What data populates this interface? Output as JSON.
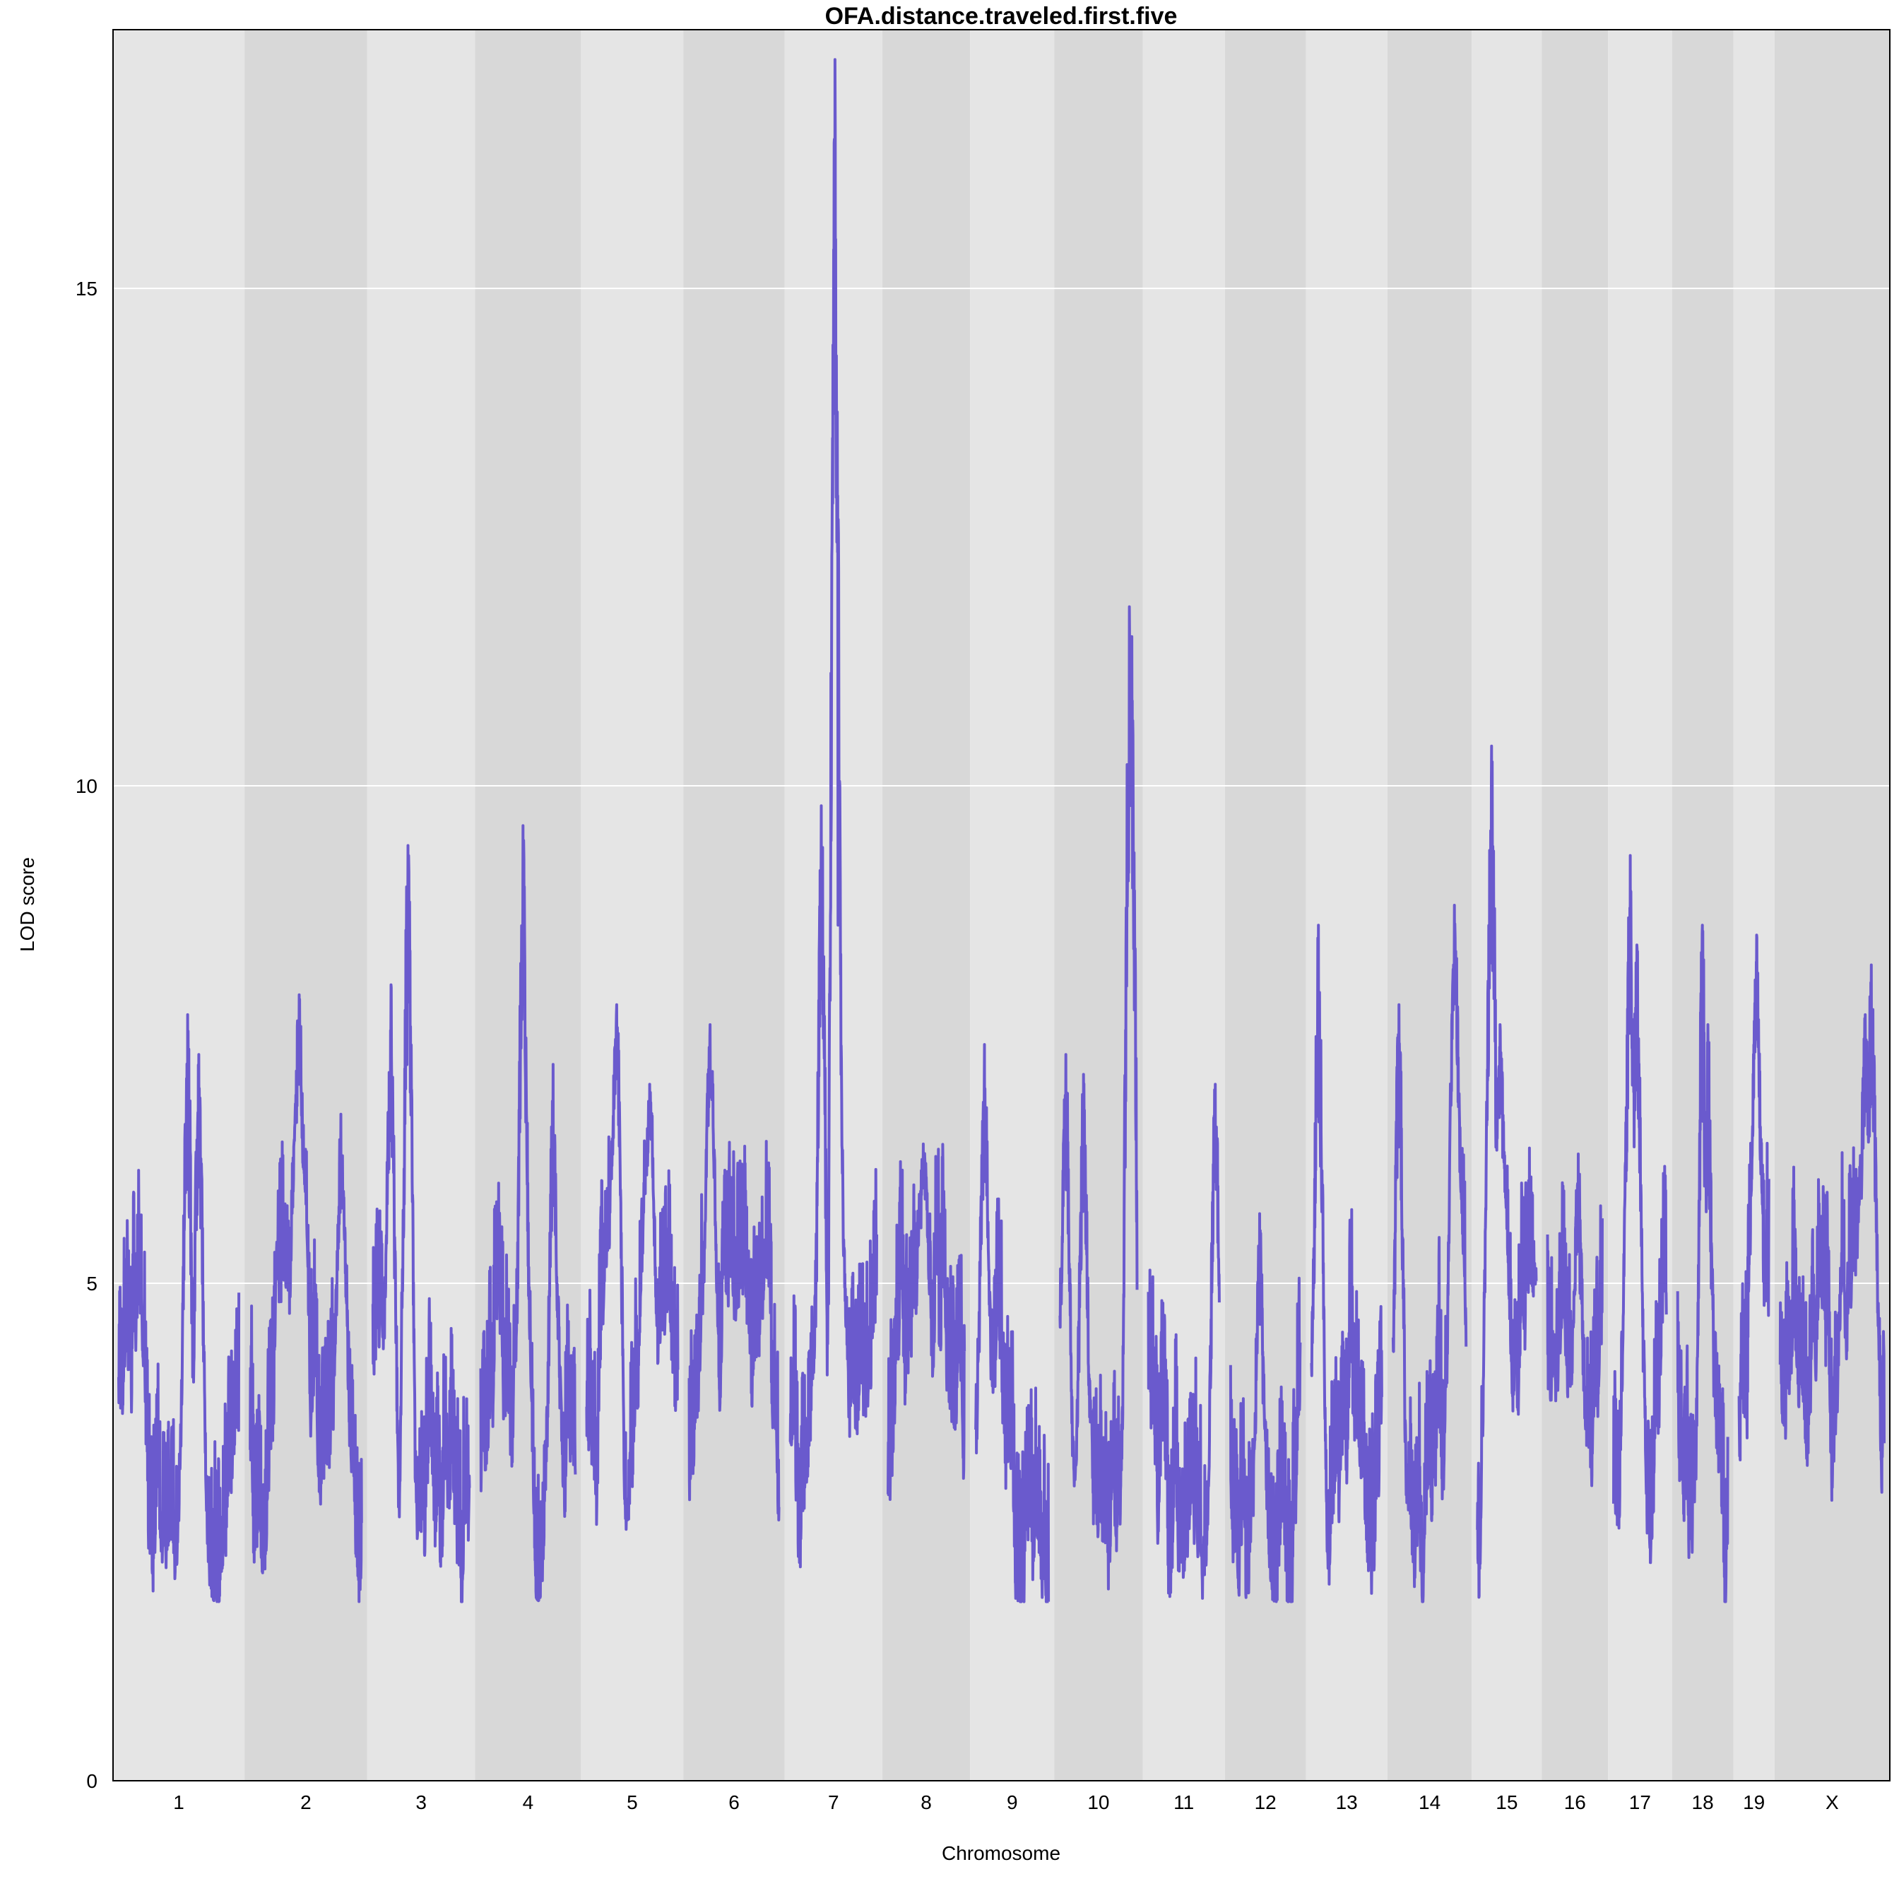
{
  "chart_data": {
    "type": "line",
    "title": "OFA.distance.traveled.first.five",
    "xlabel": "Chromosome",
    "ylabel": "LOD score",
    "ylim": [
      0,
      17.6
    ],
    "yticks": [
      0,
      5,
      10,
      15
    ],
    "grid": "horizontal",
    "colors": {
      "line": "#6a5acd",
      "band_light": "#e5e5e5",
      "band_dark": "#d8d8d8",
      "grid": "#ffffff",
      "frame": "#000000"
    },
    "chromosomes": [
      {
        "label": "1",
        "length": 195
      },
      {
        "label": "2",
        "length": 182
      },
      {
        "label": "3",
        "length": 160
      },
      {
        "label": "4",
        "length": 157
      },
      {
        "label": "5",
        "length": 152
      },
      {
        "label": "6",
        "length": 150
      },
      {
        "label": "7",
        "length": 145
      },
      {
        "label": "8",
        "length": 130
      },
      {
        "label": "9",
        "length": 125
      },
      {
        "label": "10",
        "length": 131
      },
      {
        "label": "11",
        "length": 122
      },
      {
        "label": "12",
        "length": 120
      },
      {
        "label": "13",
        "length": 121
      },
      {
        "label": "14",
        "length": 125
      },
      {
        "label": "15",
        "length": 104
      },
      {
        "label": "16",
        "length": 98
      },
      {
        "label": "17",
        "length": 95
      },
      {
        "label": "18",
        "length": 91
      },
      {
        "label": "19",
        "length": 61
      },
      {
        "label": "X",
        "length": 171
      }
    ],
    "peaks": [
      {
        "chr": "1",
        "pos": 112,
        "lod": 7.7
      },
      {
        "chr": "1",
        "pos": 130,
        "lod": 7.3
      },
      {
        "chr": "2",
        "pos": 80,
        "lod": 7.9
      },
      {
        "chr": "2",
        "pos": 148,
        "lod": 6.7
      },
      {
        "chr": "3",
        "pos": 30,
        "lod": 8.0
      },
      {
        "chr": "3",
        "pos": 58,
        "lod": 9.4
      },
      {
        "chr": "4",
        "pos": 70,
        "lod": 9.6
      },
      {
        "chr": "4",
        "pos": 120,
        "lod": 7.2
      },
      {
        "chr": "5",
        "pos": 50,
        "lod": 7.8
      },
      {
        "chr": "5",
        "pos": 105,
        "lod": 7.0
      },
      {
        "chr": "6",
        "pos": 35,
        "lod": 7.6
      },
      {
        "chr": "7",
        "pos": 52,
        "lod": 9.8
      },
      {
        "chr": "7",
        "pos": 75,
        "lod": 17.3
      },
      {
        "chr": "7",
        "pos": 77,
        "lod": 12.9
      },
      {
        "chr": "7",
        "pos": 80,
        "lod": 8.6
      },
      {
        "chr": "8",
        "pos": 60,
        "lod": 6.4
      },
      {
        "chr": "9",
        "pos": 15,
        "lod": 7.4
      },
      {
        "chr": "10",
        "pos": 10,
        "lod": 7.3
      },
      {
        "chr": "10",
        "pos": 40,
        "lod": 7.1
      },
      {
        "chr": "10",
        "pos": 118,
        "lod": 11.8
      },
      {
        "chr": "10",
        "pos": 122,
        "lod": 11.5
      },
      {
        "chr": "11",
        "pos": 115,
        "lod": 7.0
      },
      {
        "chr": "12",
        "pos": 50,
        "lod": 5.7
      },
      {
        "chr": "13",
        "pos": 12,
        "lod": 8.6
      },
      {
        "chr": "14",
        "pos": 10,
        "lod": 7.8
      },
      {
        "chr": "14",
        "pos": 105,
        "lod": 8.8
      },
      {
        "chr": "15",
        "pos": 25,
        "lod": 10.4
      },
      {
        "chr": "15",
        "pos": 40,
        "lod": 7.6
      },
      {
        "chr": "16",
        "pos": 55,
        "lod": 6.3
      },
      {
        "chr": "17",
        "pos": 30,
        "lod": 9.3
      },
      {
        "chr": "17",
        "pos": 42,
        "lod": 8.4
      },
      {
        "chr": "18",
        "pos": 45,
        "lod": 8.6
      },
      {
        "chr": "18",
        "pos": 55,
        "lod": 7.6
      },
      {
        "chr": "19",
        "pos": 36,
        "lod": 8.5
      },
      {
        "chr": "X",
        "pos": 150,
        "lod": 8.2
      },
      {
        "chr": "X",
        "pos": 140,
        "lod": 7.7
      }
    ]
  }
}
